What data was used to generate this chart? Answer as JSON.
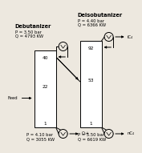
{
  "title_left": "Debutanizer",
  "title_right": "Deisobutanizer",
  "left_col": {
    "top_stage": "40",
    "feed_stage": "22",
    "condenser_P": "P = 3.50 bar",
    "condenser_Q": "Q = 4793 KW",
    "reboiler_P": "P = 4.10 bar",
    "reboiler_Q": "Q = 3055 KW",
    "feed_label": "Feed",
    "bottom_product": "C₅+"
  },
  "right_col": {
    "top_stage": "92",
    "feed_stage": "53",
    "condenser_P": "P = 4.40 bar",
    "condenser_Q": "Q = 6366 KW",
    "reboiler_P": "P = 5.50 bar",
    "reboiler_Q": "Q = 6619 KW",
    "top_product": "iC₄",
    "bottom_product": "nC₄"
  },
  "bg_color": "#ede8df",
  "col_color": "#ffffff",
  "col_edge": "#000000",
  "text_color": "#000000"
}
